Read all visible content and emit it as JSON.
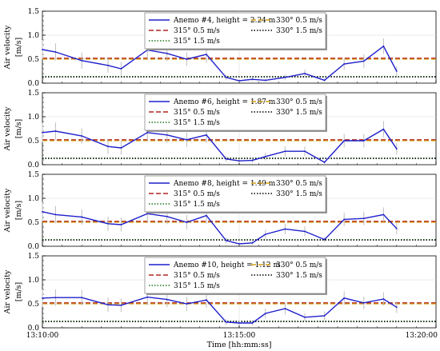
{
  "figure": {
    "xlabel": "Time [hh:mm:ss]",
    "xticks": [
      {
        "t": 0,
        "label": "13:10:00"
      },
      {
        "t": 300,
        "label": "13:15:00"
      },
      {
        "t": 600,
        "label": "13:20:00"
      }
    ]
  },
  "chart_data": [
    {
      "type": "line",
      "ylabel_top": "Air velocity",
      "ylabel_bottom": "[m/s]",
      "ylim": [
        0,
        1.5
      ],
      "yticks": [
        "0.0",
        "0.5",
        "1.0",
        "1.5"
      ],
      "xlim": [
        "13:10:00",
        "13:20:00"
      ],
      "grid": true,
      "legend_location": "top-center",
      "series": [
        {
          "name": "Anemo #4, height = 2.24 m",
          "style": "solid",
          "color": "#1f1fcc",
          "x": [
            "13:10:00",
            "13:10:20",
            "13:11:00",
            "13:11:40",
            "13:12:00",
            "13:12:40",
            "13:13:10",
            "13:13:40",
            "13:14:10",
            "13:14:40",
            "13:15:00",
            "13:15:20",
            "13:15:40",
            "13:16:10",
            "13:16:40",
            "13:17:10",
            "13:17:40",
            "13:18:10",
            "13:18:40",
            "13:19:00"
          ],
          "y": [
            0.7,
            0.65,
            0.47,
            0.37,
            0.3,
            0.69,
            0.62,
            0.5,
            0.6,
            0.12,
            0.05,
            0.08,
            0.06,
            0.12,
            0.2,
            0.06,
            0.4,
            0.46,
            0.77,
            0.25
          ],
          "error": [
            0.2,
            0.18,
            0.17,
            0.15,
            0.14,
            0.18,
            0.16,
            0.14,
            0.17,
            0.06,
            0.03,
            0.04,
            0.03,
            0.06,
            0.08,
            0.03,
            0.12,
            0.14,
            0.16,
            0.1
          ]
        },
        {
          "name": "315° 0.5 m/s",
          "style": "dashed",
          "color": "#b5231e",
          "y_const": 0.52
        },
        {
          "name": "315° 1.5 m/s",
          "style": "dotted",
          "color": "#1e7a1e",
          "y_const": 0.14
        },
        {
          "name": "330° 0.5 m/s",
          "style": "dashed",
          "color": "#d4a017",
          "y_const": 0.5
        },
        {
          "name": "330° 1.5 m/s",
          "style": "dotted",
          "color": "#000000",
          "y_const": 0.13
        }
      ]
    },
    {
      "type": "line",
      "ylabel_top": "Air velocity",
      "ylabel_bottom": "[m/s]",
      "ylim": [
        0,
        1.5
      ],
      "yticks": [
        "0.0",
        "0.5",
        "1.0",
        "1.5"
      ],
      "xlim": [
        "13:10:00",
        "13:20:00"
      ],
      "grid": true,
      "legend_location": "top-center",
      "series": [
        {
          "name": "Anemo #6, height = 1.87 m",
          "style": "solid",
          "color": "#1f1fcc",
          "x": [
            "13:10:00",
            "13:10:20",
            "13:11:00",
            "13:11:40",
            "13:12:00",
            "13:12:40",
            "13:13:10",
            "13:13:40",
            "13:14:10",
            "13:14:40",
            "13:15:00",
            "13:15:20",
            "13:15:40",
            "13:16:10",
            "13:16:40",
            "13:17:10",
            "13:17:40",
            "13:18:10",
            "13:18:40",
            "13:19:00"
          ],
          "y": [
            0.67,
            0.7,
            0.6,
            0.38,
            0.35,
            0.67,
            0.62,
            0.52,
            0.62,
            0.12,
            0.08,
            0.09,
            0.17,
            0.28,
            0.28,
            0.05,
            0.5,
            0.5,
            0.74,
            0.33
          ],
          "error": [
            0.2,
            0.18,
            0.16,
            0.15,
            0.14,
            0.18,
            0.16,
            0.15,
            0.17,
            0.06,
            0.04,
            0.05,
            0.08,
            0.1,
            0.1,
            0.03,
            0.14,
            0.14,
            0.17,
            0.12
          ]
        },
        {
          "name": "315° 0.5 m/s",
          "style": "dashed",
          "color": "#b5231e",
          "y_const": 0.52
        },
        {
          "name": "315° 1.5 m/s",
          "style": "dotted",
          "color": "#1e7a1e",
          "y_const": 0.14
        },
        {
          "name": "330° 0.5 m/s",
          "style": "dashed",
          "color": "#d4a017",
          "y_const": 0.5
        },
        {
          "name": "330° 1.5 m/s",
          "style": "dotted",
          "color": "#000000",
          "y_const": 0.13
        }
      ]
    },
    {
      "type": "line",
      "ylabel_top": "Air velocity",
      "ylabel_bottom": "[m/s]",
      "ylim": [
        0,
        1.5
      ],
      "yticks": [
        "0.0",
        "0.5",
        "1.0",
        "1.5"
      ],
      "xlim": [
        "13:10:00",
        "13:20:00"
      ],
      "grid": true,
      "legend_location": "top-center",
      "series": [
        {
          "name": "Anemo #8, height = 1.49 m",
          "style": "solid",
          "color": "#1f1fcc",
          "x": [
            "13:10:00",
            "13:10:20",
            "13:11:00",
            "13:11:40",
            "13:12:00",
            "13:12:40",
            "13:13:10",
            "13:13:40",
            "13:14:10",
            "13:14:40",
            "13:15:00",
            "13:15:20",
            "13:15:40",
            "13:16:10",
            "13:16:40",
            "13:17:10",
            "13:17:40",
            "13:18:10",
            "13:18:40",
            "13:19:00"
          ],
          "y": [
            0.72,
            0.66,
            0.61,
            0.47,
            0.45,
            0.68,
            0.62,
            0.5,
            0.64,
            0.12,
            0.05,
            0.07,
            0.25,
            0.36,
            0.31,
            0.14,
            0.56,
            0.58,
            0.66,
            0.37
          ],
          "error": [
            0.2,
            0.18,
            0.16,
            0.15,
            0.14,
            0.18,
            0.16,
            0.15,
            0.17,
            0.06,
            0.03,
            0.04,
            0.09,
            0.11,
            0.1,
            0.05,
            0.14,
            0.14,
            0.15,
            0.12
          ]
        },
        {
          "name": "315° 0.5 m/s",
          "style": "dashed",
          "color": "#b5231e",
          "y_const": 0.52
        },
        {
          "name": "315° 1.5 m/s",
          "style": "dotted",
          "color": "#1e7a1e",
          "y_const": 0.14
        },
        {
          "name": "330° 0.5 m/s",
          "style": "dashed",
          "color": "#d4a017",
          "y_const": 0.5
        },
        {
          "name": "330° 1.5 m/s",
          "style": "dotted",
          "color": "#000000",
          "y_const": 0.13
        }
      ]
    },
    {
      "type": "line",
      "ylabel_top": "Air velocity",
      "ylabel_bottom": "[m/s]",
      "ylim": [
        0,
        1.5
      ],
      "yticks": [
        "0.0",
        "0.5",
        "1.0",
        "1.5"
      ],
      "xlim": [
        "13:10:00",
        "13:20:00"
      ],
      "grid": true,
      "legend_location": "top-center",
      "series": [
        {
          "name": "Anemo #10, height = 1.12 m",
          "style": "solid",
          "color": "#1f1fcc",
          "x": [
            "13:10:00",
            "13:10:20",
            "13:11:00",
            "13:11:40",
            "13:12:00",
            "13:12:40",
            "13:13:10",
            "13:13:40",
            "13:14:10",
            "13:14:40",
            "13:15:00",
            "13:15:20",
            "13:15:40",
            "13:16:10",
            "13:16:40",
            "13:17:10",
            "13:17:40",
            "13:18:10",
            "13:18:40",
            "13:19:00"
          ],
          "y": [
            0.62,
            0.63,
            0.63,
            0.48,
            0.47,
            0.64,
            0.59,
            0.5,
            0.58,
            0.12,
            0.1,
            0.1,
            0.3,
            0.4,
            0.22,
            0.25,
            0.62,
            0.52,
            0.6,
            0.43
          ],
          "error": [
            0.18,
            0.17,
            0.16,
            0.15,
            0.14,
            0.17,
            0.16,
            0.15,
            0.16,
            0.06,
            0.05,
            0.05,
            0.1,
            0.12,
            0.08,
            0.09,
            0.14,
            0.13,
            0.14,
            0.12
          ]
        },
        {
          "name": "315° 0.5 m/s",
          "style": "dashed",
          "color": "#b5231e",
          "y_const": 0.52
        },
        {
          "name": "315° 1.5 m/s",
          "style": "dotted",
          "color": "#1e7a1e",
          "y_const": 0.14
        },
        {
          "name": "330° 0.5 m/s",
          "style": "dashed",
          "color": "#d4a017",
          "y_const": 0.5
        },
        {
          "name": "330° 1.5 m/s",
          "style": "dotted",
          "color": "#000000",
          "y_const": 0.13
        }
      ]
    }
  ]
}
